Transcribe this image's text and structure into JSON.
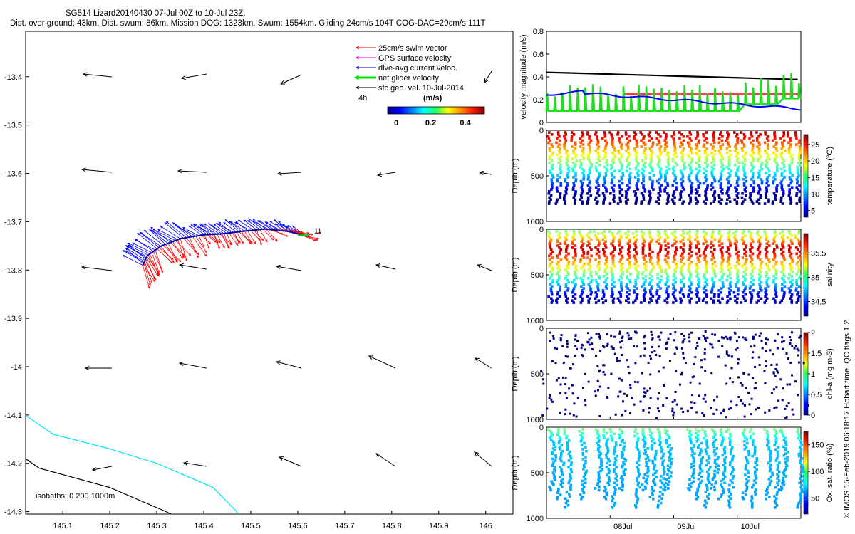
{
  "header": {
    "title_line1": "SG514 Lizard20140430 07-Jul 00Z to 10-Jul 23Z.",
    "title_line2": "Dist. over ground: 43km. Dist. swum: 86km. Mission DOG: 1323km. Swum: 1554km. Gliding 24cm/s 104T COG-DAC=29cm/s 111T"
  },
  "footer": {
    "credit": "© IMOS 15-Feb-2019 06:18:17 Hobart time. QC flags 1  2"
  },
  "map": {
    "x_ticks": [
      "145.1",
      "145.2",
      "145.3",
      "145.4",
      "145.5",
      "145.6",
      "145.7",
      "145.8",
      "145.9",
      "146"
    ],
    "y_ticks": [
      "-13.4",
      "-13.5",
      "-13.6",
      "-13.7",
      "-13.8",
      "-13.9",
      "-14",
      "-14.1",
      "-14.2",
      "-14.3"
    ],
    "legend": {
      "items": [
        {
          "label": "25cm/s swim vector",
          "color": "#ff0000"
        },
        {
          "label": "GPS surface velocity",
          "color": "#ff00ff"
        },
        {
          "label": "dive-avg current veloc.",
          "color": "#0000ff"
        },
        {
          "label": "net glider velocity",
          "color": "#00dd00"
        },
        {
          "label": "sfc geo. vel. 10-Jul-2014",
          "color": "#000000"
        }
      ],
      "time_label": "4h",
      "colorbar_unit": "(m/s)",
      "colorbar_ticks": [
        "0",
        "0.2",
        "0.4"
      ]
    },
    "isobaths_label": "isobaths: 0   200  1000m",
    "track_label": "11",
    "colors": {
      "isobath_0": "#00e5ff",
      "isobath_200": "#000000",
      "swim": "#ff0000",
      "current": "#0000ff",
      "net": "#00dd00"
    }
  },
  "chart_data": [
    {
      "type": "line",
      "name": "velocity magnitude",
      "ylabel": "velocity magnitude (m/s)",
      "ylim": [
        0,
        0.8
      ],
      "y_ticks": [
        "0",
        "0.2",
        "0.4",
        "0.6",
        "0.8"
      ],
      "x_ticks": [
        "08Jul",
        "09Jul",
        "10Jul"
      ],
      "xlim_days": [
        7.0,
        11.0
      ]
    },
    {
      "type": "scatter",
      "ylabel": "Depth (m)",
      "colorbar_label": "temperature (°C)",
      "colorbar_ticks": [
        "5",
        "10",
        "15",
        "20",
        "25"
      ],
      "y_ticks": [
        "0",
        "500",
        "1000"
      ],
      "ylim": [
        0,
        1000
      ]
    },
    {
      "type": "scatter",
      "ylabel": "Depth (m)",
      "colorbar_label": "salinity",
      "colorbar_ticks": [
        "34.5",
        "35",
        "35.5"
      ],
      "y_ticks": [
        "0",
        "500",
        "1000"
      ],
      "ylim": [
        0,
        1000
      ]
    },
    {
      "type": "scatter",
      "ylabel": "Depth (m)",
      "colorbar_label": "chl-a (mg m-3)",
      "colorbar_ticks": [
        "0",
        "0.5",
        "1",
        "1.5",
        "2"
      ],
      "y_ticks": [
        "0",
        "500",
        "1000"
      ],
      "ylim": [
        0,
        1000
      ]
    },
    {
      "type": "scatter",
      "ylabel": "Depth (m)",
      "colorbar_label": "Ox. sat. ratio (%)",
      "colorbar_ticks": [
        "50",
        "100",
        "150"
      ],
      "y_ticks": [
        "0",
        "500",
        "1000"
      ],
      "ylim": [
        0,
        1000
      ],
      "x_ticks": [
        "08Jul",
        "09Jul",
        "10Jul"
      ]
    }
  ]
}
